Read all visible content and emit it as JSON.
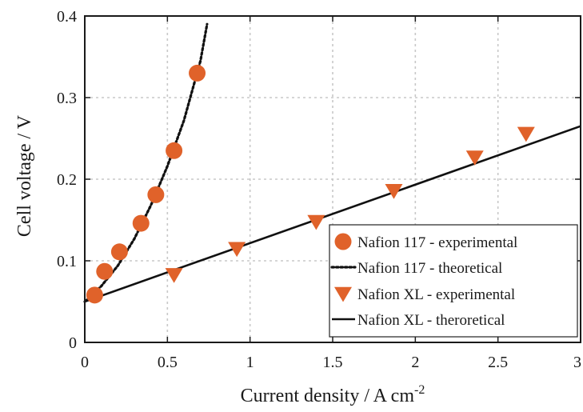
{
  "chart_data": {
    "type": "scatter",
    "xlabel": "Current density / A cm",
    "xlabel_sup": "-2",
    "ylabel": "Cell voltage / V",
    "xlim": [
      0,
      3
    ],
    "ylim": [
      0,
      0.4
    ],
    "grid": true,
    "legend_position": "bottom-right",
    "x_ticks": [
      0,
      0.5,
      1,
      1.5,
      2,
      2.5,
      3
    ],
    "x_tick_labels": [
      "0",
      "0.5",
      "1",
      "1.5",
      "2",
      "2.5",
      "3"
    ],
    "y_ticks": [
      0,
      0.1,
      0.2,
      0.3,
      0.4
    ],
    "y_tick_labels": [
      "0",
      "0.1",
      "0.2",
      "0.3",
      "0.4"
    ],
    "series": [
      {
        "name": "Nafion 117 - experimental",
        "kind": "scatter",
        "marker": "circle",
        "color": "#E0622A",
        "x": [
          0.06,
          0.12,
          0.21,
          0.34,
          0.43,
          0.54,
          0.68
        ],
        "y": [
          0.058,
          0.087,
          0.111,
          0.146,
          0.181,
          0.235,
          0.33
        ]
      },
      {
        "name": "Nafion 117 - theoretical",
        "kind": "line",
        "dash": "dotted",
        "color": "#111111",
        "x": [
          0,
          0.1,
          0.2,
          0.3,
          0.4,
          0.5,
          0.6,
          0.7,
          0.74
        ],
        "y": [
          0.05,
          0.069,
          0.094,
          0.127,
          0.168,
          0.216,
          0.272,
          0.345,
          0.39
        ]
      },
      {
        "name": "Nafion XL - experimental",
        "kind": "scatter",
        "marker": "triangle-down",
        "color": "#E0622A",
        "x": [
          0.54,
          0.92,
          1.4,
          1.87,
          2.36,
          2.67
        ],
        "y": [
          0.083,
          0.115,
          0.148,
          0.186,
          0.227,
          0.256
        ]
      },
      {
        "name": "Nafion XL - theroretical",
        "kind": "line",
        "dash": "solid",
        "color": "#111111",
        "x": [
          0,
          3
        ],
        "y": [
          0.05,
          0.265
        ]
      }
    ]
  }
}
